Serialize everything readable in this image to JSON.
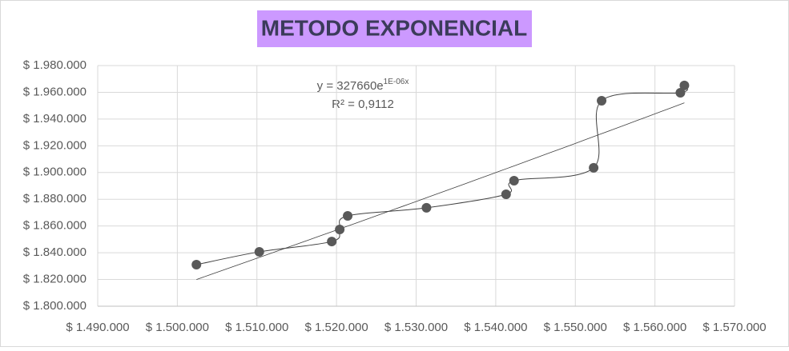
{
  "chart_data": {
    "type": "scatter",
    "title": "METODO EXPONENCIAL",
    "x": [
      1502400,
      1510300,
      1519400,
      1520400,
      1521400,
      1531300,
      1541300,
      1542300,
      1552300,
      1553300,
      1563200,
      1563700
    ],
    "values": [
      1831100,
      1840700,
      1848400,
      1857400,
      1867600,
      1873600,
      1883700,
      1893900,
      1903500,
      1953700,
      1959700,
      1965100
    ],
    "color": "#595959",
    "line": "smooth",
    "trendline": "exponential",
    "equation_base": "y = 327660e",
    "equation_exponent": "1E-06x",
    "r_squared": "R² = 0,9112",
    "xlim": [
      1490000,
      1570000
    ],
    "xticks": [
      {
        "value": 1490000,
        "label": "$ 1.490.000"
      },
      {
        "value": 1500000,
        "label": "$ 1.500.000"
      },
      {
        "value": 1510000,
        "label": "$ 1.510.000"
      },
      {
        "value": 1520000,
        "label": "$ 1.520.000"
      },
      {
        "value": 1530000,
        "label": "$ 1.530.000"
      },
      {
        "value": 1540000,
        "label": "$ 1.540.000"
      },
      {
        "value": 1550000,
        "label": "$ 1.550.000"
      },
      {
        "value": 1560000,
        "label": "$ 1.560.000"
      },
      {
        "value": 1570000,
        "label": "$ 1.570.000"
      }
    ],
    "ylim": [
      1800000,
      1980000
    ],
    "yticks": [
      {
        "value": 1800000,
        "label": "$ 1.800.000"
      },
      {
        "value": 1820000,
        "label": "$ 1.820.000"
      },
      {
        "value": 1840000,
        "label": "$ 1.840.000"
      },
      {
        "value": 1860000,
        "label": "$ 1.860.000"
      },
      {
        "value": 1880000,
        "label": "$ 1.880.000"
      },
      {
        "value": 1900000,
        "label": "$ 1.900.000"
      },
      {
        "value": 1920000,
        "label": "$ 1.920.000"
      },
      {
        "value": 1940000,
        "label": "$ 1.940.000"
      },
      {
        "value": 1960000,
        "label": "$ 1.960.000"
      },
      {
        "value": 1980000,
        "label": "$ 1.980.000"
      }
    ],
    "grid": true
  }
}
